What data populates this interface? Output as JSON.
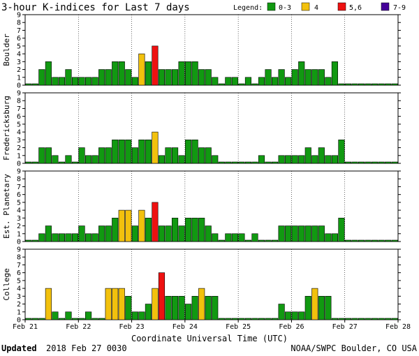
{
  "title": "3-hour K-indices for Last 7 days",
  "legend": {
    "label": "Legend:",
    "items": [
      {
        "label": "0-3",
        "color": "#119911"
      },
      {
        "label": "4",
        "color": "#f2c10d"
      },
      {
        "label": "5,6",
        "color": "#ee1111"
      },
      {
        "label": "7-9",
        "color": "#440099"
      }
    ]
  },
  "footer": {
    "updated_label": "Updated",
    "updated_value": "2018 Feb 27 0030",
    "source": "NOAA/SWPC Boulder, CO USA"
  },
  "chart_data": {
    "type": "bar",
    "xlabel": "Coordinate Universal Time (UTC)",
    "x_ticks": [
      "Feb 21",
      "Feb 22",
      "Feb 23",
      "Feb 24",
      "Feb 25",
      "Feb 26",
      "Feb 27",
      "Feb 28"
    ],
    "ylim": [
      0,
      9
    ],
    "y_ticks": [
      0,
      1,
      2,
      3,
      4,
      5,
      6,
      7,
      8,
      9
    ],
    "intervals_per_day": 8,
    "panels": [
      {
        "ylabel": "Boulder",
        "values": [
          0,
          0,
          2,
          3,
          1,
          1,
          2,
          1,
          1,
          1,
          1,
          2,
          2,
          3,
          3,
          2,
          1,
          4,
          3,
          5,
          2,
          2,
          2,
          3,
          3,
          3,
          2,
          2,
          1,
          0,
          1,
          1,
          0,
          1,
          0,
          1,
          2,
          1,
          2,
          1,
          2,
          3,
          2,
          2,
          2,
          1,
          3,
          0,
          0,
          0,
          0,
          0,
          0,
          0,
          0,
          0
        ]
      },
      {
        "ylabel": "Fredericksburg",
        "values": [
          0,
          0,
          2,
          2,
          1,
          0,
          1,
          0,
          2,
          1,
          1,
          2,
          2,
          3,
          3,
          3,
          2,
          3,
          3,
          4,
          1,
          2,
          2,
          1,
          3,
          3,
          2,
          2,
          1,
          0,
          0,
          0,
          0,
          0,
          0,
          1,
          0,
          0,
          1,
          1,
          1,
          1,
          2,
          1,
          2,
          1,
          1,
          3,
          0,
          0,
          0,
          0,
          0,
          0,
          0,
          0
        ]
      },
      {
        "ylabel": "Est. Planetary",
        "values": [
          0,
          0,
          1,
          2,
          1,
          1,
          1,
          1,
          2,
          1,
          1,
          2,
          2,
          3,
          4,
          4,
          2,
          4,
          3,
          5,
          2,
          2,
          3,
          2,
          3,
          3,
          3,
          2,
          1,
          0,
          1,
          1,
          1,
          0,
          1,
          0,
          0,
          0,
          2,
          2,
          2,
          2,
          2,
          2,
          2,
          1,
          1,
          3,
          0,
          0,
          0,
          0,
          0,
          0,
          0,
          0
        ]
      },
      {
        "ylabel": "College",
        "values": [
          0,
          0,
          0,
          4,
          1,
          0,
          1,
          0,
          0,
          1,
          0,
          0,
          4,
          4,
          4,
          3,
          1,
          1,
          2,
          4,
          6,
          3,
          3,
          3,
          2,
          3,
          4,
          3,
          3,
          0,
          0,
          0,
          0,
          0,
          0,
          0,
          0,
          0,
          2,
          1,
          1,
          1,
          3,
          4,
          3,
          3,
          0,
          0,
          0,
          0,
          0,
          0,
          0,
          0,
          0,
          0
        ]
      }
    ]
  }
}
